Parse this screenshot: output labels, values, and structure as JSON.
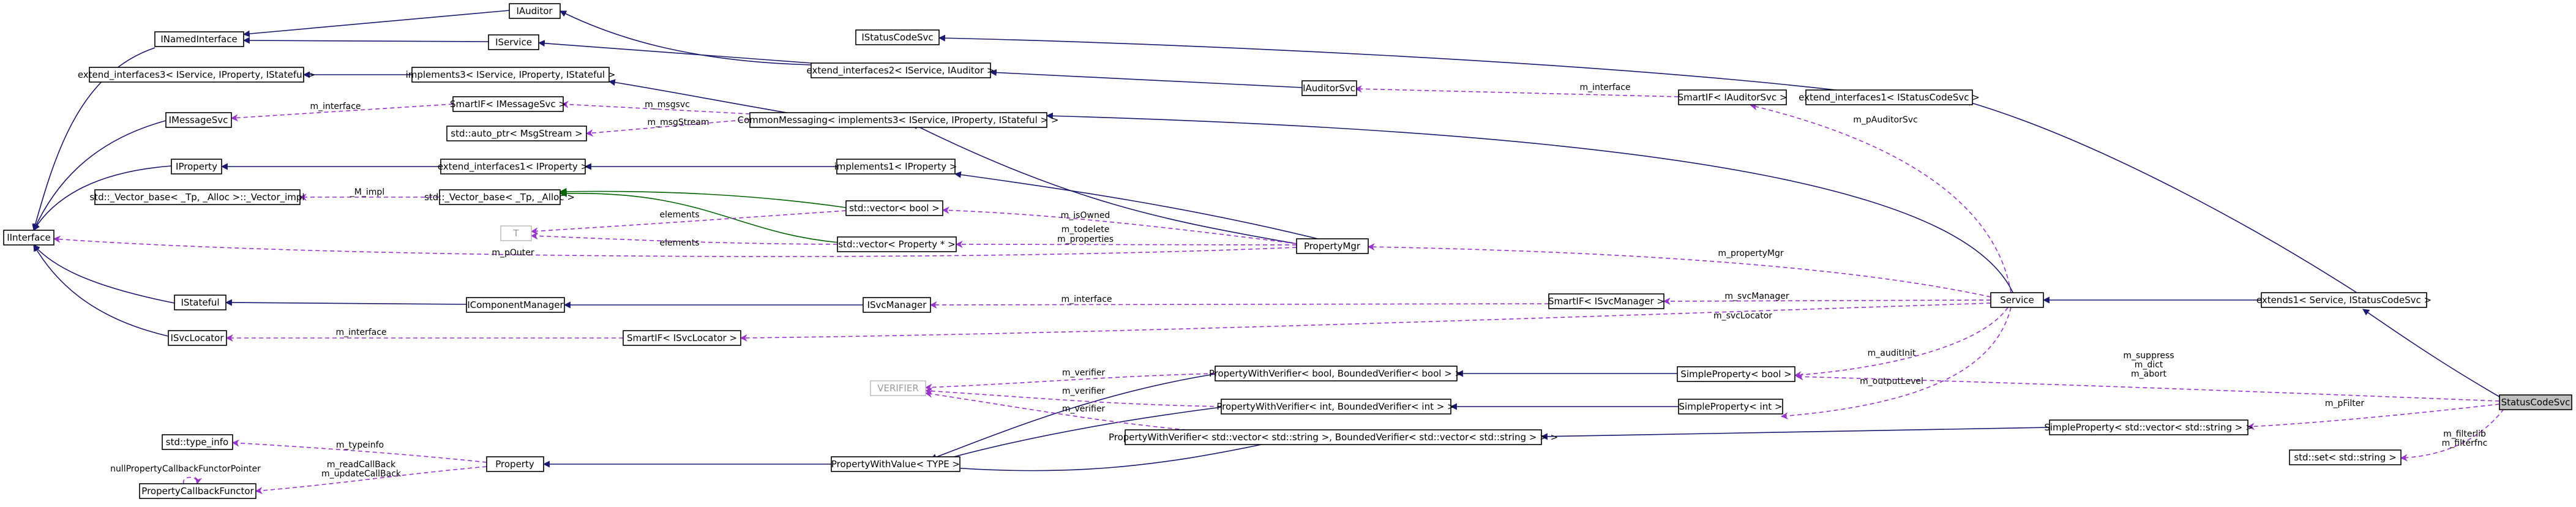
{
  "colors": {
    "inherit": "#191970",
    "usage": "#9a32cd",
    "template": "#006400",
    "node_border": "#000000",
    "node_border_dim": "#bfbfbf",
    "focus_fill": "#bfbfbf"
  },
  "nodes": {
    "iauditor": "IAuditor",
    "inamedinterface": "INamedInterface",
    "iservice": "IService",
    "istatuscodesvc": "IStatusCodeSvc",
    "extend_ifaces3": "extend_interfaces3< IService, IProperty, IStateful >",
    "implements3": "implements3< IService, IProperty, IStateful >",
    "extend_ifaces2": "extend_interfaces2< IService, IAuditor >",
    "iauditorsvc": "IAuditorSvc",
    "smartif_iauditorsvc": "SmartIF< IAuditorSvc >",
    "extend_ifaces1_status": "extend_interfaces1< IStatusCodeSvc >",
    "imessagesvc": "IMessageSvc",
    "smartif_imessagesvc": "SmartIF< IMessageSvc >",
    "auto_ptr_msgstream": "std::auto_ptr< MsgStream >",
    "commonmessaging": "CommonMessaging< implements3< IService, IProperty, IStateful > >",
    "iproperty": "IProperty",
    "extend_ifaces1_iproperty": "extend_interfaces1< IProperty >",
    "implements1_iproperty": "implements1< IProperty >",
    "vector_impl": "std::_Vector_base< _Tp, _Alloc >::_Vector_impl",
    "vector_base": "std::_Vector_base< _Tp, _Alloc >",
    "vector_bool": "std::vector< bool >",
    "vector_property": "std::vector< Property * >",
    "t_param": "T",
    "propertymgr": "PropertyMgr",
    "iinterface": "IInterface",
    "istateful": "IStateful",
    "icomponentmanager": "IComponentManager",
    "isvcmanager": "ISvcManager",
    "smartif_isvcmanager": "SmartIF< ISvcManager >",
    "service": "Service",
    "extends1": "extends1< Service, IStatusCodeSvc >",
    "isvclocator": "ISvcLocator",
    "smartif_isvclocator": "SmartIF< ISvcLocator >",
    "verifier": "VERIFIER",
    "pwv_bool": "PropertyWithVerifier< bool, BoundedVerifier< bool > >",
    "simpleproperty_bool": "SimpleProperty< bool >",
    "pwv_int": "PropertyWithVerifier< int, BoundedVerifier< int > >",
    "simpleproperty_int": "SimpleProperty< int >",
    "statuscodesvc": "StatusCodeSvc",
    "pwv_vecstr": "PropertyWithVerifier< std::vector< std::string >, BoundedVerifier< std::vector< std::string > > >",
    "simpleproperty_vecstr": "SimpleProperty< std::vector< std::string > >",
    "type_info": "std::type_info",
    "property": "Property",
    "propertywithvalue": "PropertyWithValue< TYPE >",
    "propertycallbackfunctor": "PropertyCallbackFunctor",
    "set_string": "std::set< std::string >"
  },
  "labels": {
    "m_interface_msg": "m_interface",
    "m_msgsvc": "m_msgsvc",
    "m_msgstream": "m_msgStream",
    "m_interface_auditor": "m_interface",
    "m_pauditorsvc": "m_pAuditorSvc",
    "m_impl": "_M_impl",
    "elements_1": "elements",
    "elements_2": "elements",
    "m_isowned": "m_isOwned",
    "m_todelete": "m_todelete",
    "m_properties": "m_properties",
    "m_pouter": "m_pOuter",
    "m_propertymgr": "m_propertyMgr",
    "m_interface_svcmgr": "m_interface",
    "m_svcmanager": "m_svcManager",
    "m_svclocator": "m_svcLocator",
    "m_interface_svcloc": "m_interface",
    "m_auditinit": "m_auditInit",
    "m_outputlevel": "m_outputLevel",
    "m_suppress": "m_suppress",
    "m_dict": "m_dict",
    "m_abort": "m_abort",
    "m_pfilter": "m_pFilter",
    "m_filterlib": "m_filterlib",
    "m_filterfnc": "m_filterfnc",
    "m_verifier_1": "m_verifier",
    "m_verifier_2": "m_verifier",
    "m_verifier_3": "m_verifier",
    "m_typeinfo": "m_typeinfo",
    "nullpropertycallback": "nullPropertyCallbackFunctorPointer",
    "m_readcallback": "m_readCallBack",
    "m_updatecallback": "m_updateCallBack"
  }
}
